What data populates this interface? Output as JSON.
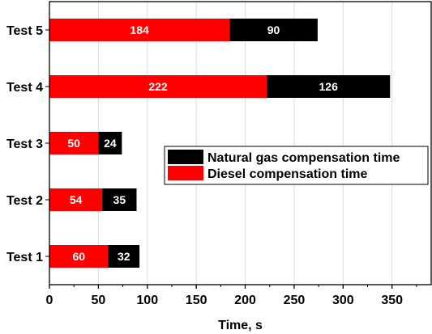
{
  "chart_data": {
    "type": "bar",
    "orientation": "horizontal",
    "stacked": true,
    "categories": [
      "Test 1",
      "Test 2",
      "Test 3",
      "Test 4",
      "Test 5"
    ],
    "series": [
      {
        "name": "Diesel compensation time",
        "values": [
          60,
          54,
          50,
          222,
          184
        ],
        "color": "#ff0000"
      },
      {
        "name": "Natural gas compensation time",
        "values": [
          32,
          35,
          24,
          126,
          90
        ],
        "color": "#000000"
      }
    ],
    "xlabel": "Time, s",
    "ylabel": "",
    "xlim": [
      0,
      390
    ],
    "xticks": [
      "0",
      "50",
      "100",
      "150",
      "200",
      "250",
      "300",
      "350"
    ],
    "grid": "vertical",
    "legend": {
      "position": "center-right",
      "entries": [
        "Natural gas compensation time",
        "Diesel compensation time"
      ]
    }
  }
}
